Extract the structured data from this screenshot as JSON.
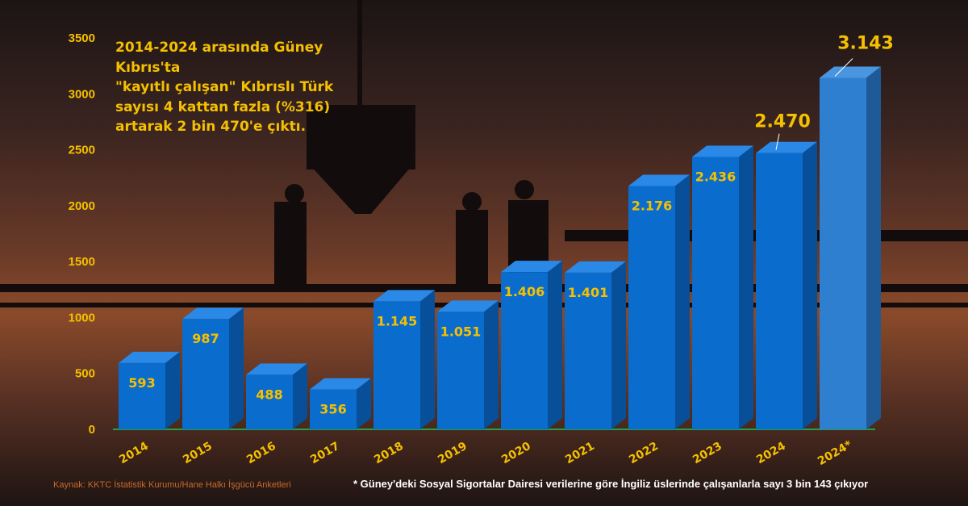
{
  "headline": "2014-2024 arasında Güney Kıbrıs'ta\n\"kayıtlı çalışan\" Kıbrıslı Türk\nsayısı 4 kattan fazla (%316)\nartarak 2 bin 470'e çıktı.",
  "source": "Kaynak: KKTC İstatistik Kurumu/Hane Halkı İşgücü Anketleri",
  "note": "* Güney'deki Sosyal Sigortalar Dairesi verilerine göre İngiliz üslerinde çalışanlarla sayı 3 bin 143 çıkıyor",
  "chart_data": {
    "type": "bar",
    "title": "",
    "xlabel": "",
    "ylabel": "",
    "ylim": [
      0,
      3500
    ],
    "yticks": [
      0,
      500,
      1000,
      1500,
      2000,
      2500,
      3000,
      3500
    ],
    "categories": [
      "2014",
      "2015",
      "2016",
      "2017",
      "2018",
      "2019",
      "2020",
      "2021",
      "2022",
      "2023",
      "2024",
      "2024*"
    ],
    "values": [
      593,
      987,
      488,
      356,
      1145,
      1051,
      1406,
      1401,
      2176,
      2436,
      2470,
      3143
    ],
    "labels": [
      "593",
      "987",
      "488",
      "356",
      "1.145",
      "1.051",
      "1.406",
      "1.401",
      "2.176",
      "2.436",
      "2.470",
      "3.143"
    ],
    "callouts": [
      10,
      11
    ],
    "colors": {
      "bar": "#0a6ccc",
      "highlight_bar": "#2f7fd0",
      "text": "#f5c000",
      "baseline": "#1fa04a"
    }
  }
}
